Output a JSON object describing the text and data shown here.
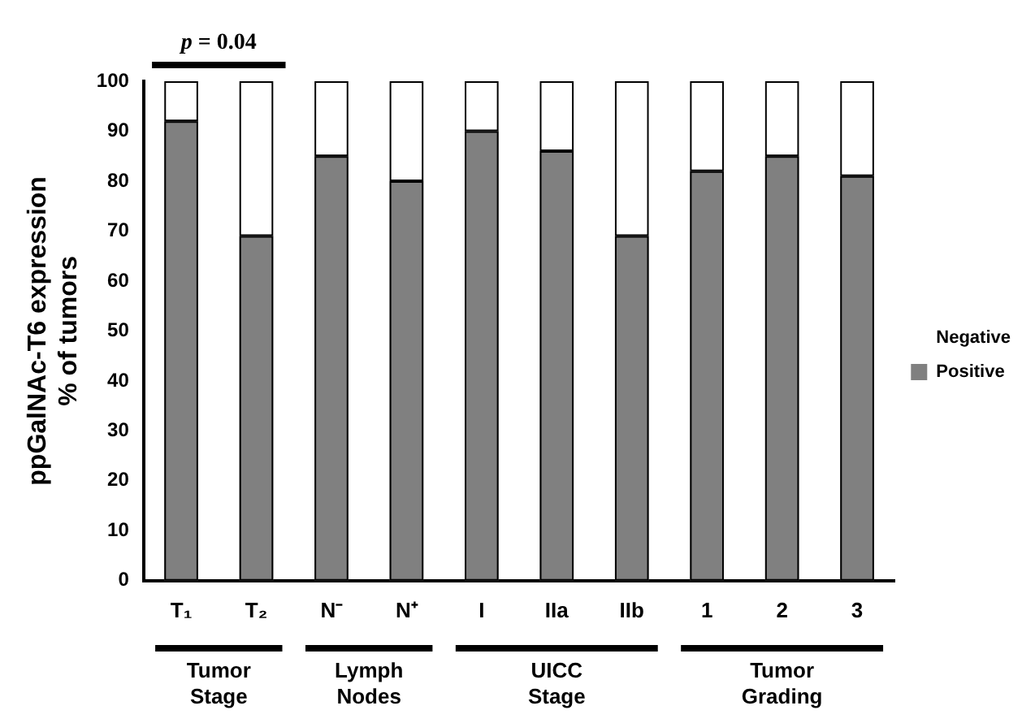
{
  "chart_data": {
    "type": "bar",
    "stacked": true,
    "ylabel": "ppGalNAc-T6 expression\n% of tumors",
    "categories": [
      "T₁",
      "T₂",
      "N⁻",
      "N⁺",
      "I",
      "IIa",
      "IIb",
      "1",
      "2",
      "3"
    ],
    "series": [
      {
        "name": "Positive",
        "color": "#808080",
        "values": [
          92,
          69,
          85,
          80,
          90,
          86,
          69,
          82,
          85,
          81
        ]
      },
      {
        "name": "Negative",
        "color": "#ffffff",
        "values": [
          8,
          31,
          15,
          20,
          10,
          14,
          31,
          18,
          15,
          19
        ]
      }
    ],
    "ylim": [
      0,
      100
    ],
    "yticks": [
      0,
      10,
      20,
      30,
      40,
      50,
      60,
      70,
      80,
      90,
      100
    ],
    "grid": false,
    "legend": "right",
    "annotations": [
      "p = 0.04",
      "Tumor Stage",
      "Lymph Nodes",
      "UICC Stage",
      "Tumor Grading"
    ]
  }
}
